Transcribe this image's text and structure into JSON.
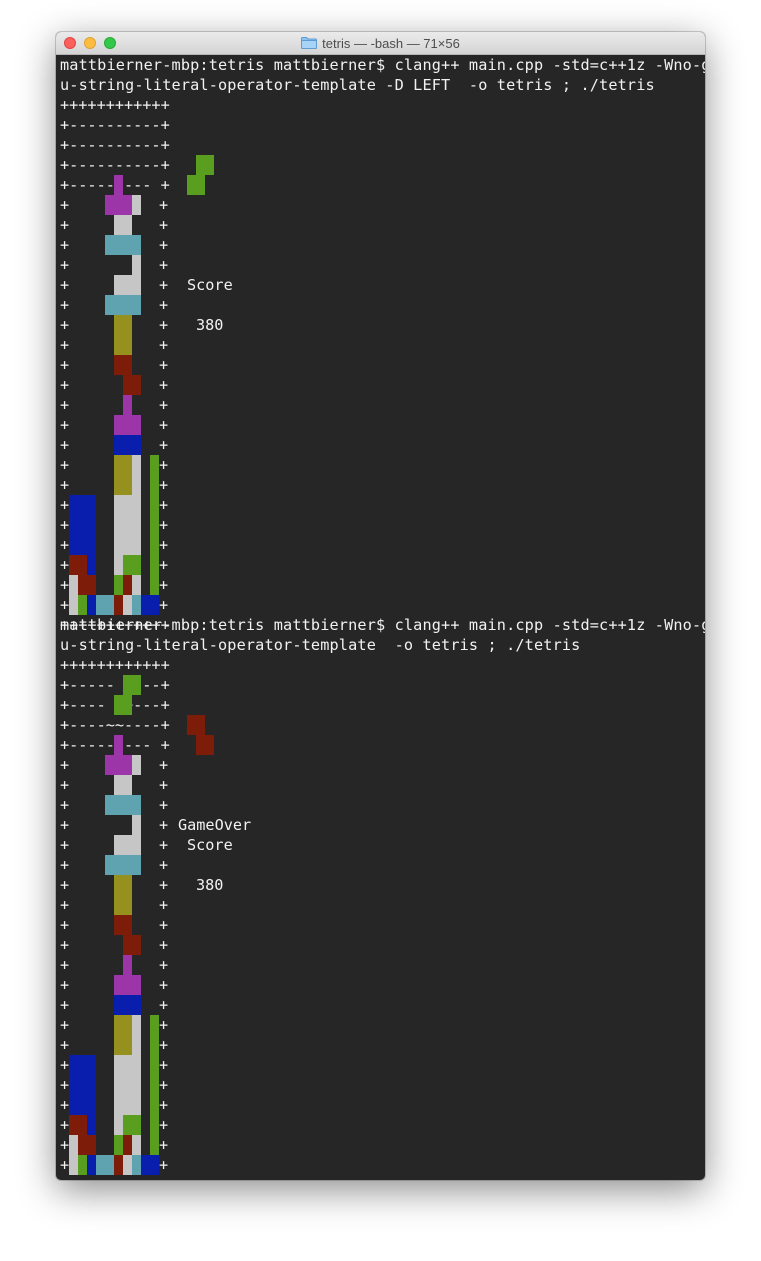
{
  "window": {
    "title": "tetris — -bash — 71×56",
    "folder_icon": "folder-icon"
  },
  "colors": {
    "terminal_bg": "#262626",
    "terminal_fg": "#f2f2f2",
    "piece_colors": {
      "P": "#9b35a8",
      "L": "#c6c6c6",
      "C": "#5fa2b0",
      "Y": "#96901f",
      "R": "#7d1c08",
      "B": "#0a1eae",
      "G": "#5a9e1f"
    }
  },
  "sessions": [
    {
      "command_line1": "mattbierner-mbp:tetris mattbierner$ clang++ main.cpp -std=c++1z -Wno-gn",
      "command_line2": "u-string-literal-operator-template -D LEFT  -o tetris ; ./tetris",
      "top_border": "++++++++++++",
      "bottom_border": "++++++++++++",
      "hidden_rows": [
        "+----------+",
        "+----------+",
        "+----------+",
        "+--------- +"
      ],
      "hidden_cells": [
        [],
        [],
        [],
        [
          [
            5,
            "P"
          ]
        ]
      ],
      "grid": [
        "    PPPL  ",
        "     LL   ",
        "    CCCC  ",
        "       L  ",
        "     LLL  ",
        "    CCCC  ",
        "     YY   ",
        "     YY   ",
        "     RR   ",
        "      RR  ",
        "      P   ",
        "     PPP  ",
        "     BBB  ",
        "     YYL G",
        "     YYL G",
        "BBB  LLL G",
        "BBB  LLL G",
        "BBB  LLL G",
        "RRB  LGG G",
        "LRR  GRL G",
        "LGBCCRLCBB"
      ],
      "next_piece": {
        "shape": [
          " GG",
          "GG "
        ],
        "color": "G"
      },
      "gameover_label": "",
      "score_label": "Score",
      "score_value": "380"
    },
    {
      "command_line1": "mattbierner-mbp:tetris mattbierner$ clang++ main.cpp -std=c++1z -Wno-gn",
      "command_line2": "u-string-literal-operator-template  -o tetris ; ./tetris",
      "top_border": "++++++++++++",
      "bottom_border": "++++++++++++",
      "hidden_rows": [
        "+-----  ---+",
        "+----  ~---+",
        "+----~~----+",
        "+--------- +"
      ],
      "hidden_cells": [
        [
          [
            6,
            "G"
          ],
          [
            7,
            "G"
          ]
        ],
        [
          [
            5,
            "G"
          ],
          [
            6,
            "G"
          ]
        ],
        [],
        [
          [
            5,
            "P"
          ]
        ]
      ],
      "grid": [
        "    PPPL  ",
        "     LL   ",
        "    CCCC  ",
        "       L  ",
        "     LLL  ",
        "    CCCC  ",
        "     YY   ",
        "     YY   ",
        "     RR   ",
        "      RR  ",
        "      P   ",
        "     PPP  ",
        "     BBB  ",
        "     YYL G",
        "     YYL G",
        "BBB  LLL G",
        "BBB  LLL G",
        "BBB  LLL G",
        "RRB  LGG G",
        "LRR  GRL G",
        "LGBCCRLCBB"
      ],
      "next_piece": {
        "shape": [
          "RR ",
          " RR"
        ],
        "color": "R"
      },
      "gameover_label": "GameOver",
      "score_label": "Score",
      "score_value": "380"
    }
  ]
}
